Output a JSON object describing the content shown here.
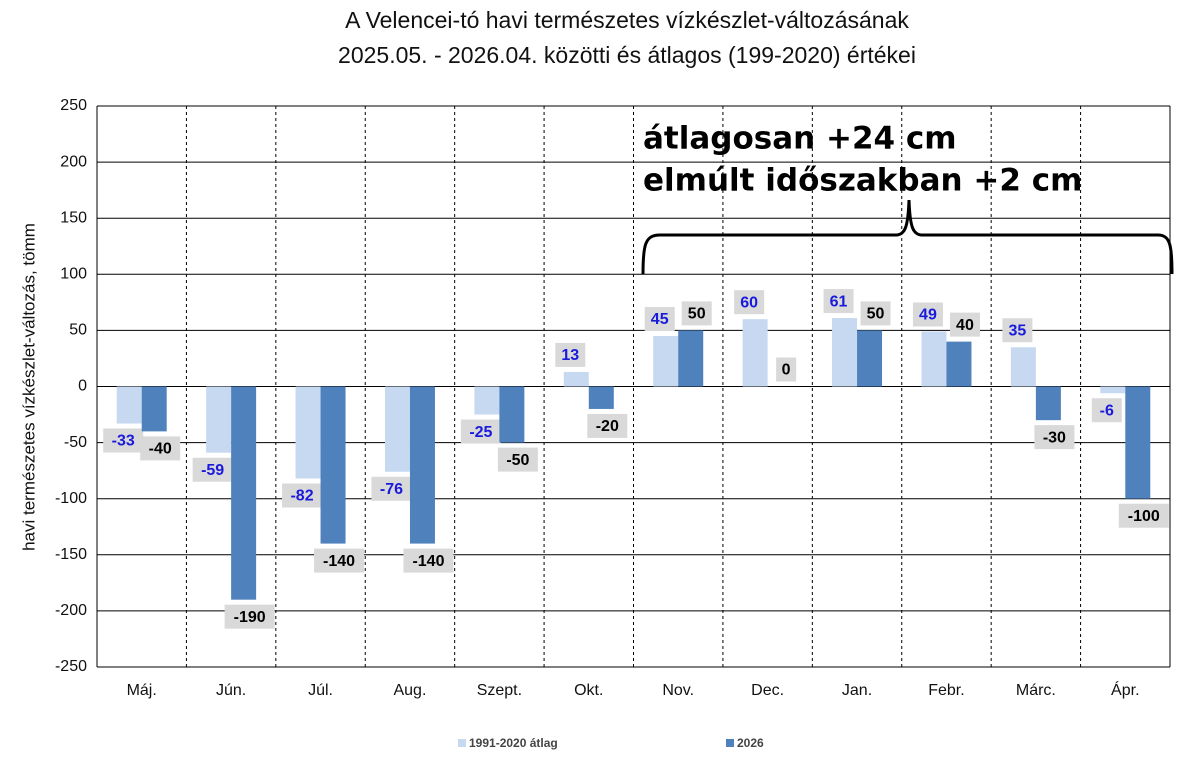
{
  "chart_data": {
    "type": "bar",
    "title": [
      "A Velencei-tó havi természetes vízkészlet-változásának",
      "2025.05. - 2026.04. közötti és átlagos (199-2020) értékei"
    ],
    "y_label": "havi természetes vízkészlet-változás, tömm",
    "annotations": [
      "átlagosan +24 cm",
      "elmúlt időszakban +2 cm"
    ],
    "categories": [
      "Máj.",
      "Jún.",
      "Júl.",
      "Aug.",
      "Szept.",
      "Okt.",
      "Nov.",
      "Dec.",
      "Jan.",
      "Febr.",
      "Márc.",
      "Ápr."
    ],
    "series": [
      {
        "name": "1991-2020 átlag",
        "color": "#c6d9f1",
        "label_color": "#1a1adc",
        "values": [
          -33,
          -59,
          -82,
          -76,
          -25,
          13,
          45,
          60,
          61,
          49,
          35,
          -6
        ]
      },
      {
        "name": "2026",
        "color": "#4f81bd",
        "label_color": "#000000",
        "values": [
          -40,
          -190,
          -140,
          -140,
          -50,
          -20,
          50,
          0,
          50,
          40,
          -30,
          -100
        ]
      }
    ],
    "ylim": [
      -250,
      250
    ],
    "yticks": [
      -250,
      -200,
      -150,
      -100,
      -50,
      0,
      50,
      100,
      150,
      200,
      250
    ],
    "grid": true
  }
}
